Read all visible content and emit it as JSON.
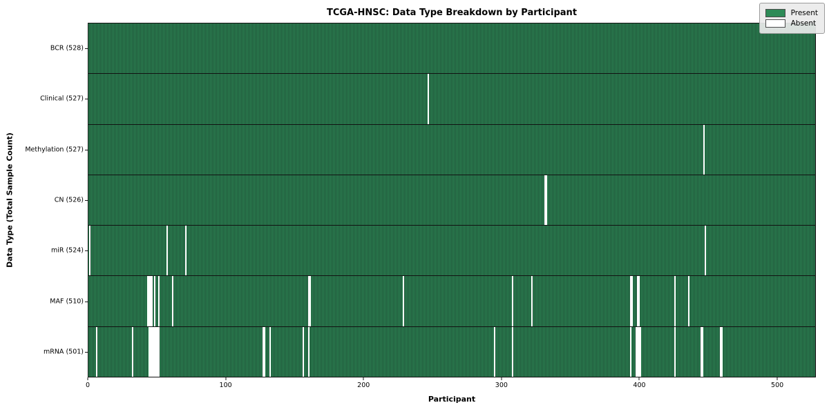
{
  "title": "TCGA-HNSC: Data Type Breakdown by Participant",
  "colors": {
    "present": "#2e8b57",
    "present_stripe_dark": "#1e4f36",
    "absent": "#ffffff",
    "legend_bg": "#eaeaea",
    "axis": "#111111"
  },
  "legend": {
    "present_label": "Present",
    "absent_label": "Absent"
  },
  "chart_data": {
    "type": "heatmap",
    "title": "TCGA-HNSC: Data Type Breakdown by Participant",
    "xlabel": "Participant",
    "ylabel": "Data Type (Total Sample Count)",
    "x_range": [
      0,
      528
    ],
    "x_ticks": [
      0,
      100,
      200,
      300,
      400,
      500
    ],
    "grid": false,
    "legend_position": "upper-right",
    "legend_entries": [
      {
        "label": "Present",
        "color": "#2e8b57"
      },
      {
        "label": "Absent",
        "color": "#ffffff"
      }
    ],
    "total_participants": 528,
    "rows": [
      {
        "label": "BCR (528)",
        "data_type": "BCR",
        "present_count": 528,
        "absent_participants": []
      },
      {
        "label": "Clinical (527)",
        "data_type": "Clinical",
        "present_count": 527,
        "absent_participants": [
          247
        ]
      },
      {
        "label": "Methylation (527)",
        "data_type": "Methylation",
        "present_count": 527,
        "absent_participants": [
          447
        ]
      },
      {
        "label": "CN (526)",
        "data_type": "CN",
        "present_count": 526,
        "absent_participants": [
          332,
          333
        ]
      },
      {
        "label": "miR (524)",
        "data_type": "miR",
        "present_count": 524,
        "absent_participants": [
          1,
          57,
          71,
          448
        ]
      },
      {
        "label": "MAF (510)",
        "data_type": "MAF",
        "present_count": 510,
        "absent_participants": [
          43,
          44,
          45,
          46,
          48,
          51,
          61,
          160,
          161,
          229,
          308,
          322,
          394,
          395,
          399,
          400,
          426,
          436
        ]
      },
      {
        "label": "mRNA (501)",
        "data_type": "mRNA",
        "present_count": 501,
        "absent_participants": [
          6,
          32,
          44,
          45,
          46,
          47,
          48,
          49,
          50,
          51,
          127,
          128,
          132,
          156,
          160,
          295,
          308,
          394,
          398,
          399,
          400,
          401,
          426,
          445,
          446,
          459,
          460
        ]
      }
    ]
  }
}
